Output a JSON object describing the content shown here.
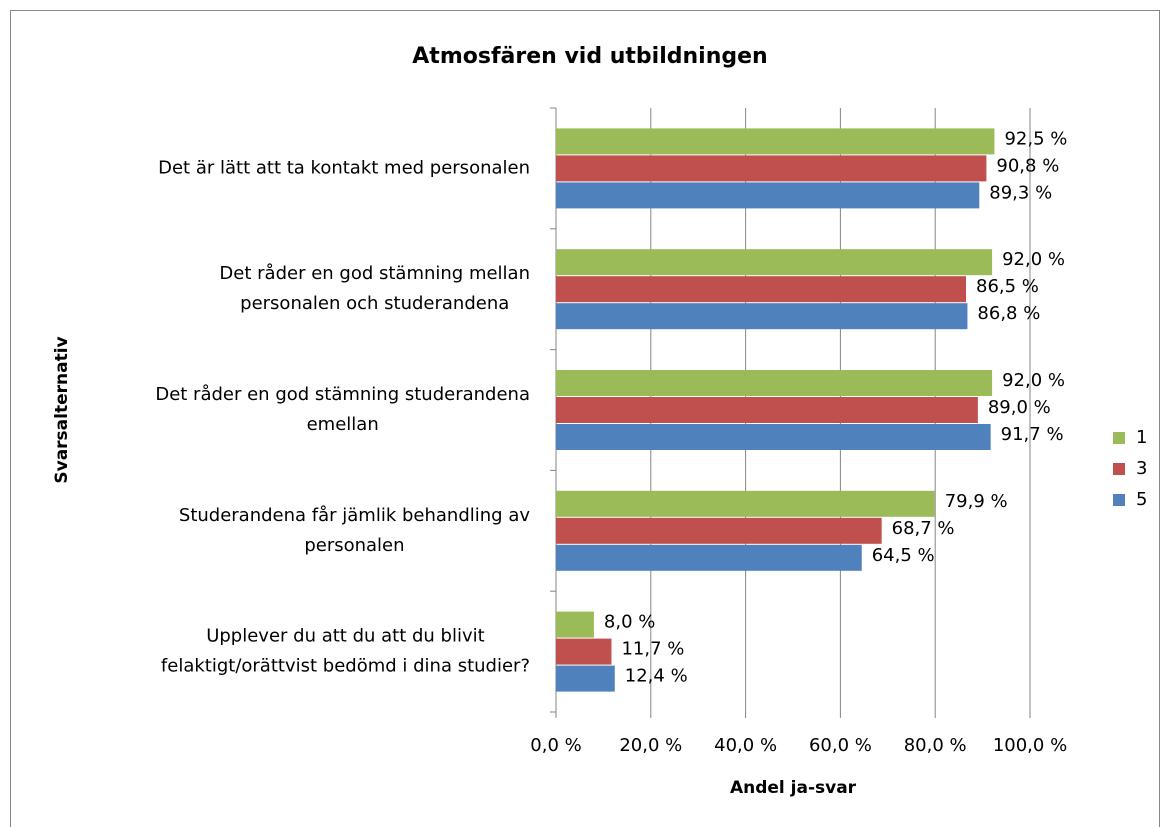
{
  "chart_data": {
    "type": "bar",
    "orientation": "horizontal",
    "title": "Atmosfären vid utbildningen",
    "x_label": "Andel ja-svar",
    "y_label": "Svarsalternativ",
    "categories": [
      "Det är lätt att ta kontakt med personalen",
      "Det råder en god stämning mellan\npersonalen och studerandena",
      "Det råder en god stämning studerandena\nemellan",
      "Studerandena får jämlik behandling av\npersonalen",
      "Upplever du att du att du blivit\nfelaktigt/orättvist bedömd i dina studier?"
    ],
    "series": [
      {
        "name": "1",
        "color": "#9bbb59",
        "values": [
          92.5,
          92.0,
          92.0,
          79.9,
          8.0
        ],
        "value_labels": [
          "92,5 %",
          "92,0 %",
          "92,0 %",
          "79,9 %",
          "8,0 %"
        ]
      },
      {
        "name": "3",
        "color": "#c0504d",
        "values": [
          90.8,
          86.5,
          89.0,
          68.7,
          11.7
        ],
        "value_labels": [
          "90,8 %",
          "86,5 %",
          "89,0 %",
          "68,7 %",
          "11,7 %"
        ]
      },
      {
        "name": "5",
        "color": "#4f81bd",
        "values": [
          89.3,
          86.8,
          91.7,
          64.5,
          12.4
        ],
        "value_labels": [
          "89,3 %",
          "86,8 %",
          "91,7 %",
          "64,5 %",
          "12,4 %"
        ]
      }
    ],
    "xlim": [
      0,
      100
    ],
    "xticks": [
      {
        "value": 0,
        "label": "0,0 %"
      },
      {
        "value": 20,
        "label": "20,0 %"
      },
      {
        "value": 40,
        "label": "40,0 %"
      },
      {
        "value": 60,
        "label": "60,0 %"
      },
      {
        "value": 80,
        "label": "80,0 %"
      },
      {
        "value": 100,
        "label": "100,0 %"
      }
    ],
    "grid": true,
    "legend": "right"
  }
}
